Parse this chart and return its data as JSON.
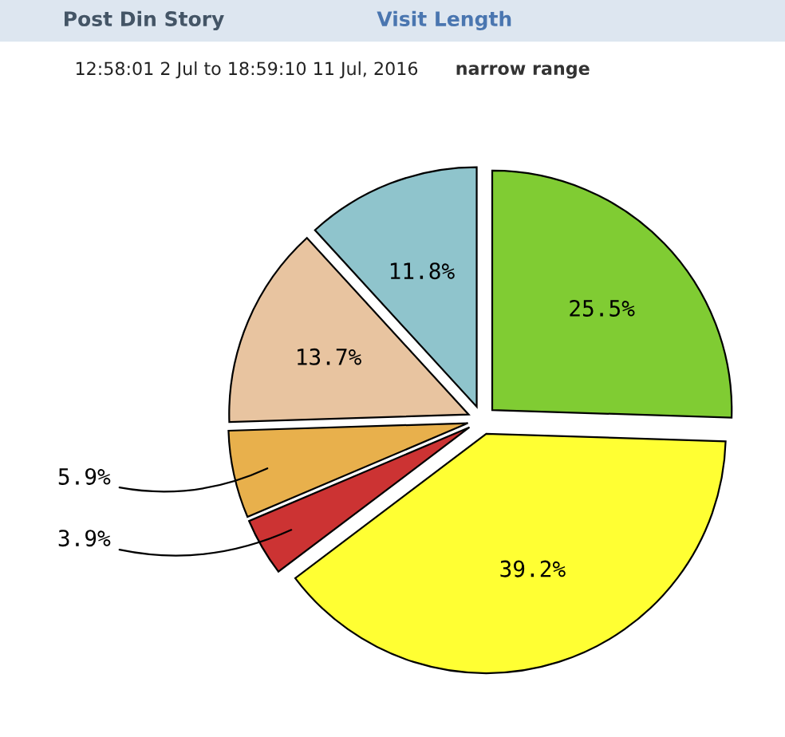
{
  "chart_data": {
    "type": "pie",
    "title": "Visit Length",
    "subtitle": "12:58:01 2 Jul to 18:59:10 11 Jul, 2016",
    "annotations": [
      "Post Din Story",
      "narrow range"
    ],
    "categories": [
      null,
      null,
      null,
      null,
      null,
      null
    ],
    "values": [
      25.5,
      39.2,
      3.9,
      5.9,
      13.7,
      11.8
    ],
    "colors": [
      "#80cc33",
      "#ffff33",
      "#cc3333",
      "#e8b04c",
      "#e8c4a0",
      "#8fc4cc"
    ],
    "value_labels": [
      "25.5%",
      "39.2%",
      "3.9%",
      "5.9%",
      "13.7%",
      "11.8%"
    ],
    "legend": false
  }
}
